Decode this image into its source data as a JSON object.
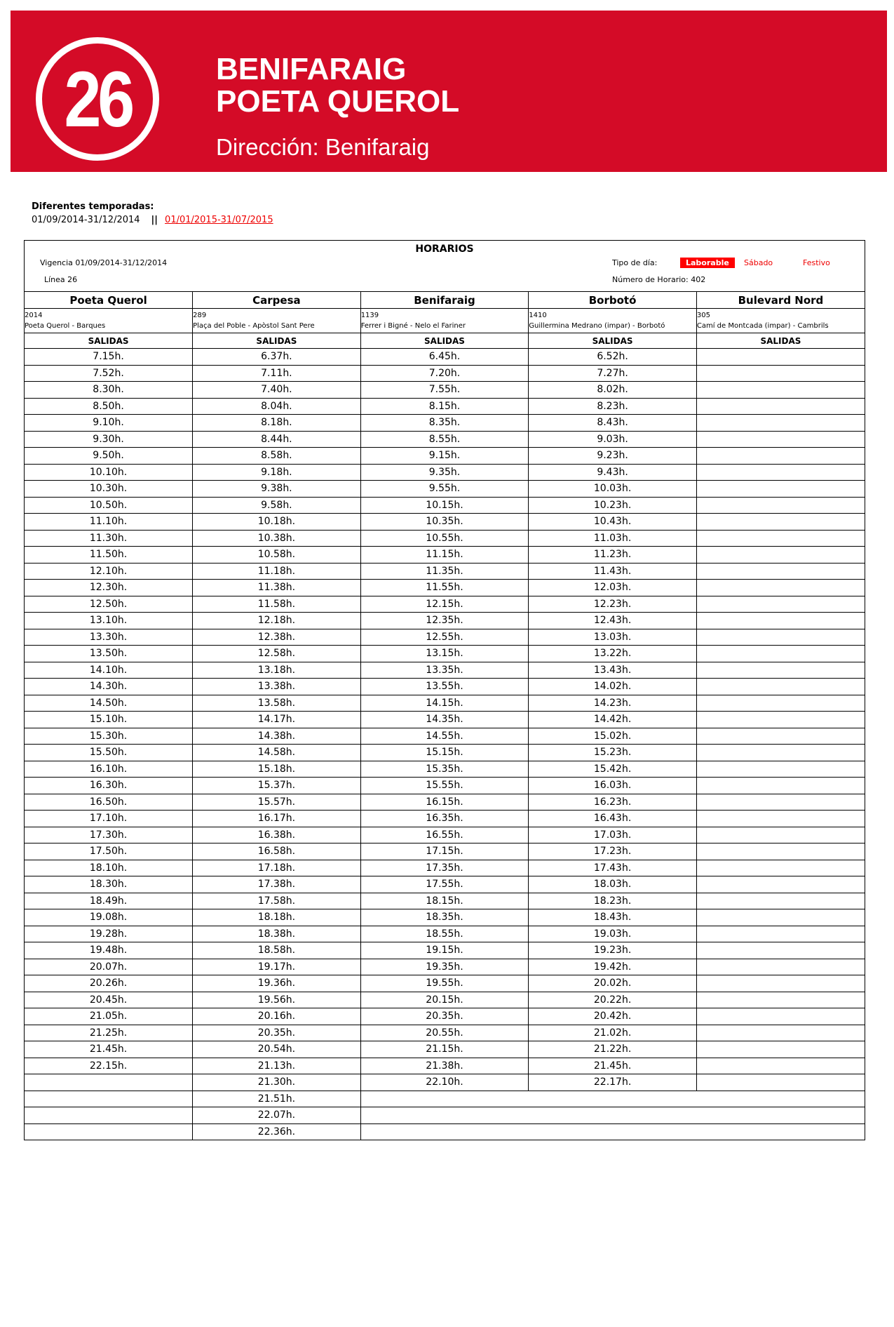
{
  "banner": {
    "line_number": "26",
    "title_line1": "BENIFARAIG",
    "title_line2": "POETA QUEROL",
    "direction": "Dirección: Benifaraig",
    "color": "#d40b27"
  },
  "seasons": {
    "label": "Diferentes temporadas:",
    "current": "01/09/2014-31/12/2014",
    "separator": "||",
    "other_link": "01/01/2015-31/07/2015"
  },
  "schedule": {
    "title": "HORARIOS",
    "validity": "Vigencia 01/09/2014-31/12/2014",
    "line": "Línea 26",
    "day_type_label": "Tipo de día:",
    "day_types": [
      "Laborable",
      "Sábado",
      "Festivo"
    ],
    "selected_day_type": "Laborable",
    "schedule_number": "Número de Horario: 402",
    "columns": [
      {
        "name": "Poeta Querol",
        "stop_code": "2014",
        "stop_name": "Poeta Querol - Barques",
        "sub": "SALIDAS",
        "times": [
          "7.15h.",
          "7.52h.",
          "8.30h.",
          "8.50h.",
          "9.10h.",
          "9.30h.",
          "9.50h.",
          "10.10h.",
          "10.30h.",
          "10.50h.",
          "11.10h.",
          "11.30h.",
          "11.50h.",
          "12.10h.",
          "12.30h.",
          "12.50h.",
          "13.10h.",
          "13.30h.",
          "13.50h.",
          "14.10h.",
          "14.30h.",
          "14.50h.",
          "15.10h.",
          "15.30h.",
          "15.50h.",
          "16.10h.",
          "16.30h.",
          "16.50h.",
          "17.10h.",
          "17.30h.",
          "17.50h.",
          "18.10h.",
          "18.30h.",
          "18.49h.",
          "19.08h.",
          "19.28h.",
          "19.48h.",
          "20.07h.",
          "20.26h.",
          "20.45h.",
          "21.05h.",
          "21.25h.",
          "21.45h.",
          "22.15h."
        ]
      },
      {
        "name": "Carpesa",
        "stop_code": "289",
        "stop_name": "Plaça del Poble - Apòstol Sant Pere",
        "sub": "SALIDAS",
        "times": [
          "6.37h.",
          "7.11h.",
          "7.40h.",
          "8.04h.",
          "8.18h.",
          "8.44h.",
          "8.58h.",
          "9.18h.",
          "9.38h.",
          "9.58h.",
          "10.18h.",
          "10.38h.",
          "10.58h.",
          "11.18h.",
          "11.38h.",
          "11.58h.",
          "12.18h.",
          "12.38h.",
          "12.58h.",
          "13.18h.",
          "13.38h.",
          "13.58h.",
          "14.17h.",
          "14.38h.",
          "14.58h.",
          "15.18h.",
          "15.37h.",
          "15.57h.",
          "16.17h.",
          "16.38h.",
          "16.58h.",
          "17.18h.",
          "17.38h.",
          "17.58h.",
          "18.18h.",
          "18.38h.",
          "18.58h.",
          "19.17h.",
          "19.36h.",
          "19.56h.",
          "20.16h.",
          "20.35h.",
          "20.54h.",
          "21.13h.",
          "21.30h.",
          "21.51h.",
          "22.07h.",
          "22.36h."
        ]
      },
      {
        "name": "Benifaraig",
        "stop_code": "1139",
        "stop_name": "Ferrer i Bigné - Nelo el Fariner",
        "sub": "SALIDAS",
        "times": [
          "6.45h.",
          "7.20h.",
          "7.55h.",
          "8.15h.",
          "8.35h.",
          "8.55h.",
          "9.15h.",
          "9.35h.",
          "9.55h.",
          "10.15h.",
          "10.35h.",
          "10.55h.",
          "11.15h.",
          "11.35h.",
          "11.55h.",
          "12.15h.",
          "12.35h.",
          "12.55h.",
          "13.15h.",
          "13.35h.",
          "13.55h.",
          "14.15h.",
          "14.35h.",
          "14.55h.",
          "15.15h.",
          "15.35h.",
          "15.55h.",
          "16.15h.",
          "16.35h.",
          "16.55h.",
          "17.15h.",
          "17.35h.",
          "17.55h.",
          "18.15h.",
          "18.35h.",
          "18.55h.",
          "19.15h.",
          "19.35h.",
          "19.55h.",
          "20.15h.",
          "20.35h.",
          "20.55h.",
          "21.15h.",
          "21.38h.",
          "22.10h."
        ]
      },
      {
        "name": "Borbotó",
        "stop_code": "1410",
        "stop_name": "Guillermina Medrano (impar) - Borbotó",
        "sub": "SALIDAS",
        "times": [
          "6.52h.",
          "7.27h.",
          "8.02h.",
          "8.23h.",
          "8.43h.",
          "9.03h.",
          "9.23h.",
          "9.43h.",
          "10.03h.",
          "10.23h.",
          "10.43h.",
          "11.03h.",
          "11.23h.",
          "11.43h.",
          "12.03h.",
          "12.23h.",
          "12.43h.",
          "13.03h.",
          "13.22h.",
          "13.43h.",
          "14.02h.",
          "14.23h.",
          "14.42h.",
          "15.02h.",
          "15.23h.",
          "15.42h.",
          "16.03h.",
          "16.23h.",
          "16.43h.",
          "17.03h.",
          "17.23h.",
          "17.43h.",
          "18.03h.",
          "18.23h.",
          "18.43h.",
          "19.03h.",
          "19.23h.",
          "19.42h.",
          "20.02h.",
          "20.22h.",
          "20.42h.",
          "21.02h.",
          "21.22h.",
          "21.45h.",
          "22.17h."
        ]
      },
      {
        "name": "Bulevard Nord",
        "stop_code": "305",
        "stop_name": "Camí de Montcada (impar) - Cambrils",
        "sub": "SALIDAS",
        "times": []
      }
    ]
  }
}
